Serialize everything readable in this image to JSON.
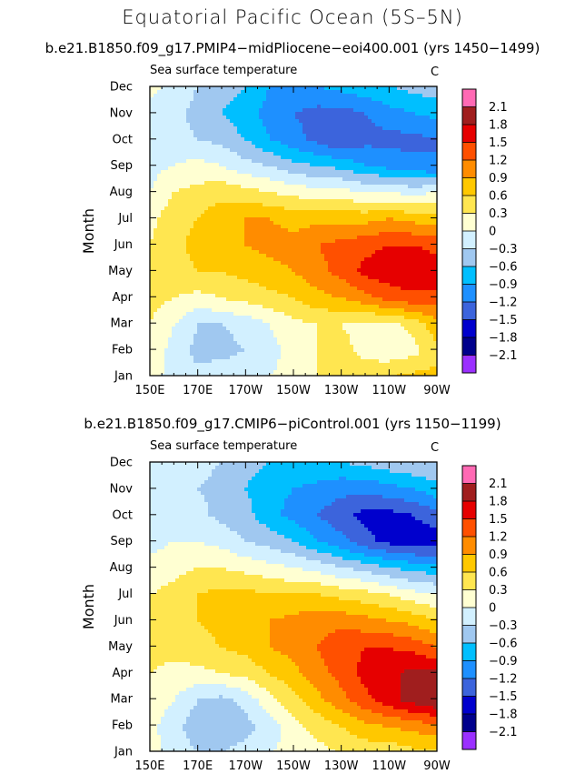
{
  "title": "Equatorial Pacific Ocean (5S–5N)",
  "colorbar": {
    "colors": [
      "#9b30ff",
      "#00008c",
      "#0000cd",
      "#3c64dc",
      "#1e90ff",
      "#00bfff",
      "#a0c8f0",
      "#d2f0ff",
      "#ffffd2",
      "#ffe650",
      "#ffc800",
      "#ff8c00",
      "#ff5000",
      "#e60000",
      "#a01e1e",
      "#ff69b4"
    ],
    "labels": [
      "2.1",
      "1.8",
      "1.5",
      "1.2",
      "0.9",
      "0.6",
      "0.3",
      "0",
      "−0.3",
      "−0.6",
      "−0.9",
      "−1.2",
      "−1.5",
      "−1.8",
      "−2.1"
    ],
    "levels": [
      -2.1,
      -1.8,
      -1.5,
      -1.2,
      -0.9,
      -0.6,
      -0.3,
      0,
      0.3,
      0.6,
      0.9,
      1.2,
      1.5,
      1.8,
      2.1
    ]
  },
  "chart_data": [
    {
      "type": "heatmap",
      "title": "b.e21.B1850.f09_g17.PMIP4−midPliocene−eoi400.001 (yrs 1450−1499)",
      "variable": "Sea surface temperature",
      "units": "C",
      "ylabel": "Month",
      "xlabel": "",
      "x_ticks": [
        "150E",
        "170E",
        "170W",
        "150W",
        "130W",
        "110W",
        "90W"
      ],
      "y_ticks": [
        "Jan",
        "Feb",
        "Mar",
        "Apr",
        "May",
        "Jun",
        "Jul",
        "Aug",
        "Sep",
        "Oct",
        "Nov",
        "Dec"
      ],
      "x_values": [
        150,
        160,
        170,
        180,
        190,
        200,
        210,
        220,
        230,
        240,
        250,
        260,
        270
      ],
      "values": [
        [
          0.1,
          -0.1,
          -0.2,
          -0.1,
          0.0,
          0.0,
          0.1,
          0.3,
          0.4,
          0.5,
          0.6,
          0.7,
          0.7
        ],
        [
          0.2,
          -0.1,
          -0.4,
          -0.4,
          -0.3,
          -0.1,
          0.1,
          0.3,
          0.4,
          0.2,
          0.1,
          0.2,
          0.5
        ],
        [
          0.3,
          0.0,
          -0.3,
          -0.3,
          -0.2,
          0.0,
          0.2,
          0.3,
          0.3,
          0.2,
          0.2,
          0.4,
          0.8
        ],
        [
          0.4,
          0.3,
          0.2,
          0.3,
          0.4,
          0.5,
          0.6,
          0.8,
          0.9,
          1.1,
          1.3,
          1.4,
          1.4
        ],
        [
          0.4,
          0.5,
          0.6,
          0.6,
          0.7,
          0.8,
          0.9,
          1.1,
          1.3,
          1.6,
          1.7,
          1.8,
          1.7
        ],
        [
          0.3,
          0.5,
          0.7,
          0.8,
          0.9,
          1.0,
          1.0,
          1.2,
          1.3,
          1.4,
          1.5,
          1.5,
          1.4
        ],
        [
          0.2,
          0.5,
          0.6,
          0.8,
          0.9,
          0.9,
          0.8,
          0.8,
          0.8,
          0.8,
          0.9,
          0.8,
          0.7
        ],
        [
          0.0,
          0.3,
          0.4,
          0.5,
          0.4,
          0.3,
          0.2,
          0.1,
          0.1,
          0.0,
          0.0,
          -0.1,
          0.0
        ],
        [
          -0.1,
          0.0,
          0.1,
          0.0,
          -0.2,
          -0.3,
          -0.5,
          -0.6,
          -0.7,
          -0.9,
          -1.0,
          -1.1,
          -1.2
        ],
        [
          -0.2,
          -0.2,
          -0.3,
          -0.4,
          -0.6,
          -0.9,
          -1.1,
          -1.3,
          -1.5,
          -1.3,
          -1.3,
          -1.3,
          -1.2
        ],
        [
          -0.1,
          -0.2,
          -0.4,
          -0.6,
          -0.8,
          -1.0,
          -1.2,
          -1.3,
          -1.3,
          -1.2,
          -1.0,
          -0.9,
          -0.8
        ],
        [
          0.1,
          -0.1,
          -0.3,
          -0.4,
          -0.6,
          -0.9,
          -0.9,
          -0.9,
          -0.8,
          -0.7,
          -0.6,
          -0.5,
          -0.4
        ]
      ]
    },
    {
      "type": "heatmap",
      "title": "b.e21.B1850.f09_g17.CMIP6−piControl.001 (yrs 1150−1199)",
      "variable": "Sea surface temperature",
      "units": "C",
      "ylabel": "Month",
      "xlabel": "",
      "x_ticks": [
        "150E",
        "170E",
        "170W",
        "150W",
        "130W",
        "110W",
        "90W"
      ],
      "y_ticks": [
        "Jan",
        "Feb",
        "Mar",
        "Apr",
        "May",
        "Jun",
        "Jul",
        "Aug",
        "Sep",
        "Oct",
        "Nov",
        "Dec"
      ],
      "x_values": [
        150,
        160,
        170,
        180,
        190,
        200,
        210,
        220,
        230,
        240,
        250,
        260,
        270
      ],
      "values": [
        [
          0.1,
          -0.1,
          -0.3,
          -0.3,
          -0.2,
          0.0,
          0.1,
          0.2,
          0.3,
          0.4,
          0.4,
          0.5,
          0.5
        ],
        [
          0.1,
          -0.2,
          -0.5,
          -0.5,
          -0.4,
          -0.2,
          0.2,
          0.4,
          0.6,
          0.8,
          0.9,
          1.0,
          1.1
        ],
        [
          0.2,
          0.0,
          -0.3,
          -0.4,
          -0.2,
          0.2,
          0.5,
          0.8,
          1.1,
          1.4,
          1.7,
          1.9,
          2.1
        ],
        [
          0.3,
          0.2,
          0.2,
          0.3,
          0.4,
          0.6,
          0.8,
          1.1,
          1.3,
          1.6,
          1.7,
          1.9,
          1.9
        ],
        [
          0.4,
          0.4,
          0.5,
          0.6,
          0.7,
          0.9,
          1.0,
          1.2,
          1.4,
          1.5,
          1.5,
          1.4,
          1.2
        ],
        [
          0.4,
          0.5,
          0.6,
          0.7,
          0.8,
          0.9,
          1.0,
          1.1,
          1.1,
          1.0,
          0.9,
          0.8,
          0.6
        ],
        [
          0.3,
          0.4,
          0.6,
          0.7,
          0.7,
          0.6,
          0.6,
          0.6,
          0.5,
          0.4,
          0.3,
          0.1,
          0.0
        ],
        [
          0.1,
          0.2,
          0.3,
          0.3,
          0.2,
          0.1,
          0.0,
          -0.1,
          -0.3,
          -0.4,
          -0.6,
          -0.7,
          -0.8
        ],
        [
          -0.1,
          0.0,
          0.0,
          -0.1,
          -0.3,
          -0.4,
          -0.6,
          -0.9,
          -1.1,
          -1.4,
          -1.6,
          -1.7,
          -1.7
        ],
        [
          -0.1,
          -0.2,
          -0.2,
          -0.4,
          -0.5,
          -0.8,
          -1.0,
          -1.2,
          -1.4,
          -1.6,
          -1.6,
          -1.5,
          -1.3
        ],
        [
          -0.1,
          -0.2,
          -0.3,
          -0.4,
          -0.6,
          -0.8,
          -0.9,
          -1.0,
          -1.1,
          -1.1,
          -1.0,
          -0.9,
          -0.7
        ],
        [
          0.0,
          -0.1,
          -0.2,
          -0.3,
          -0.5,
          -0.6,
          -0.6,
          -0.6,
          -0.6,
          -0.5,
          -0.4,
          -0.3,
          -0.3
        ]
      ]
    }
  ]
}
